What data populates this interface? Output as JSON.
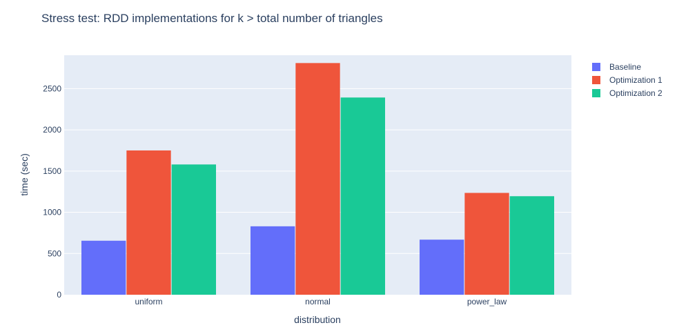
{
  "chart_data": {
    "type": "bar",
    "title": "Stress test: RDD implementations for k > total number of triangles",
    "xlabel": "distribution",
    "ylabel": "time (sec)",
    "categories": [
      "uniform",
      "normal",
      "power_law"
    ],
    "series": [
      {
        "name": "Baseline",
        "color": "#636efa",
        "values": [
          655,
          830,
          668
        ]
      },
      {
        "name": "Optimization 1",
        "color": "#ef553b",
        "values": [
          1750,
          2810,
          1235
        ]
      },
      {
        "name": "Optimization 2",
        "color": "#19c996",
        "values": [
          1580,
          2392,
          1195
        ]
      }
    ],
    "ylim": [
      0,
      2905
    ],
    "yticks": [
      0,
      500,
      1000,
      1500,
      2000,
      2500
    ],
    "grid": true,
    "legend_position": "top-right"
  }
}
